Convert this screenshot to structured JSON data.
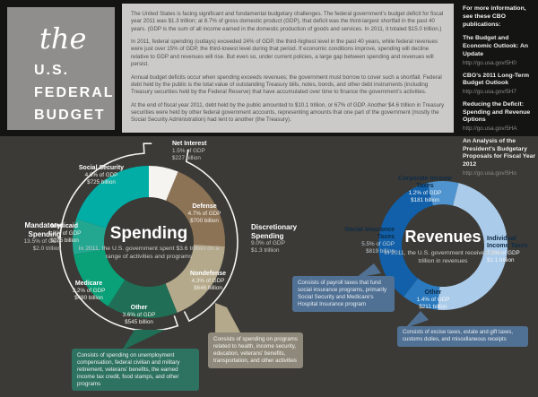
{
  "brand": {
    "script_word": "the",
    "title_lines": [
      "U.S.",
      "FEDERAL",
      "BUDGET"
    ]
  },
  "intro": {
    "paragraphs": [
      "The United States is facing significant and fundamental budgetary challenges. The federal government’s budget deficit for fiscal year 2011 was $1.3 trillion; at 8.7% of gross domestic product (GDP), that deficit was the third-largest shortfall in the past 40 years. (GDP is the sum of all income earned in the domestic production of goods and services. In 2011, it totaled $15.0 trillion.)",
      "In 2011, federal spending (outlays) exceeded 24% of GDP, the third-highest level in the past 40 years, while federal revenues were just over 15% of GDP, the third-lowest level during that period. If economic conditions improve, spending will decline relative to GDP and revenues will rise. But even so, under current policies, a large gap between spending and revenues will persist.",
      "Annual budget deficits occur when spending exceeds revenues; the government must borrow to cover such a shortfall. Federal debt held by the public is the total value of outstanding Treasury bills, notes, bonds, and other debt instruments (including Treasury securities held by the Federal Reserve) that have accumulated over time to finance the government’s activities.",
      "At the end of fiscal year 2011, debt held by the public amounted to $10.1 trillion, or 67% of GDP. Another $4.6 trillion in Treasury securities were held by other federal government accounts, representing amounts that one part of the government (mostly the Social Security Administration) had lent to another (the Treasury)."
    ]
  },
  "more_info": {
    "heading_lines": [
      "For more information,",
      "see these CBO publications:"
    ],
    "publications": [
      {
        "title": "The Budget and Economic Outlook: An Update",
        "url": "http://go.usa.gov/5H0"
      },
      {
        "title": "CBO’s 2011 Long-Term Budget Outlook",
        "url": "http://go.usa.gov/5H7"
      },
      {
        "title": "Reducing the Deficit: Spending and Revenue Options",
        "url": "http://go.usa.gov/5HA"
      },
      {
        "title": "An Analysis of the President’s Budgetary Proposals for Fiscal Year 2012",
        "url": "http://go.usa.gov/5Ho"
      }
    ]
  },
  "chart_data": [
    {
      "type": "donut",
      "id": "spending",
      "title": "Spending",
      "subtitle": "In 2011, the U.S. government spent $3.6 trillion on a range of activities and programs",
      "total": "$3.6 trillion",
      "units": "percent of GDP",
      "segments": [
        {
          "label": "Net Interest",
          "value": 1.5,
          "pct_label": "1.5% of GDP",
          "amount": "$227 billion",
          "color": "#f5f4f1"
        },
        {
          "label": "Defense",
          "value": 4.7,
          "pct_label": "4.7% of GDP",
          "amount": "$700 billion",
          "color": "#8d7356"
        },
        {
          "label": "Nondefense",
          "value": 4.3,
          "pct_label": "4.3% of GDP",
          "amount": "$646 billion",
          "color": "#b5a98c"
        },
        {
          "label": "Other",
          "value": 3.6,
          "pct_label": "3.6% of GDP",
          "amount": "$545 billion",
          "color": "#1f6e55"
        },
        {
          "label": "Medicare",
          "value": 3.2,
          "pct_label": "3.2% of GDP",
          "amount": "$480 billion",
          "color": "#0aa078"
        },
        {
          "label": "Medicaid",
          "value": 1.8,
          "pct_label": "1.8% of GDP",
          "amount": "$275 billion",
          "color": "#23a791"
        },
        {
          "label": "Social Security",
          "value": 4.8,
          "pct_label": "4.8% of GDP",
          "amount": "$725 billion",
          "color": "#02ada6"
        }
      ],
      "groups": [
        {
          "label": "Mandatory Spending",
          "pct_label": "13.5% of GDP",
          "amount": "$2.0 trillion"
        },
        {
          "label": "Discretionary Spending",
          "pct_label": "9.0% of GDP",
          "amount": "$1.3 trillion"
        }
      ]
    },
    {
      "type": "donut",
      "id": "revenues",
      "title": "Revenues",
      "subtitle": "In 2011, the U.S. government received $2.3 trillion in revenues",
      "total": "$2.3 trillion",
      "units": "percent of GDP",
      "segments": [
        {
          "label": "Corporate Income Taxes",
          "value": 1.2,
          "pct_label": "1.2% of GDP",
          "amount": "$181 billion",
          "color": "#4f94cf"
        },
        {
          "label": "Individual Income Taxes",
          "value": 7.3,
          "pct_label": "7.3% of GDP",
          "amount": "$1.1 trillion",
          "color": "#abcbea"
        },
        {
          "label": "Other",
          "value": 1.4,
          "pct_label": "1.4% of GDP",
          "amount": "$211 billion",
          "color": "#2b7abf"
        },
        {
          "label": "Social Insurance Taxes",
          "value": 5.5,
          "pct_label": "5.5% of GDP",
          "amount": "$819 billion",
          "color": "#1160a9"
        }
      ]
    }
  ],
  "callouts": [
    {
      "for": "spending-other",
      "text": "Consists of spending on unemployment compensation, federal civilian and military retirement, veterans’ benefits, the earned income tax credit, food stamps, and other programs",
      "color": "#2e7262"
    },
    {
      "for": "spending-nondefense",
      "text": "Consists of spending on programs related to health, income security, education, veterans’ benefits, transportation, and other activities",
      "color": "#8e897b"
    },
    {
      "for": "revenues-social-insurance",
      "text": "Consists of payroll taxes that fund social insurance programs, primarily Social Security and Medicare’s Hospital Insurance program",
      "color": "#517194"
    },
    {
      "for": "revenues-other",
      "text": "Consists of excise taxes, estate and gift taxes, customs duties, and miscellaneous receipts",
      "color": "#517194"
    }
  ],
  "palette": {
    "page_background": "#3b3a36",
    "top_band": "#141412",
    "brand_box": "#8f8e8c",
    "intro_box": "#cbcac8",
    "bracket_line": "#f5f4f1",
    "navy_label": "#0e2b46"
  }
}
